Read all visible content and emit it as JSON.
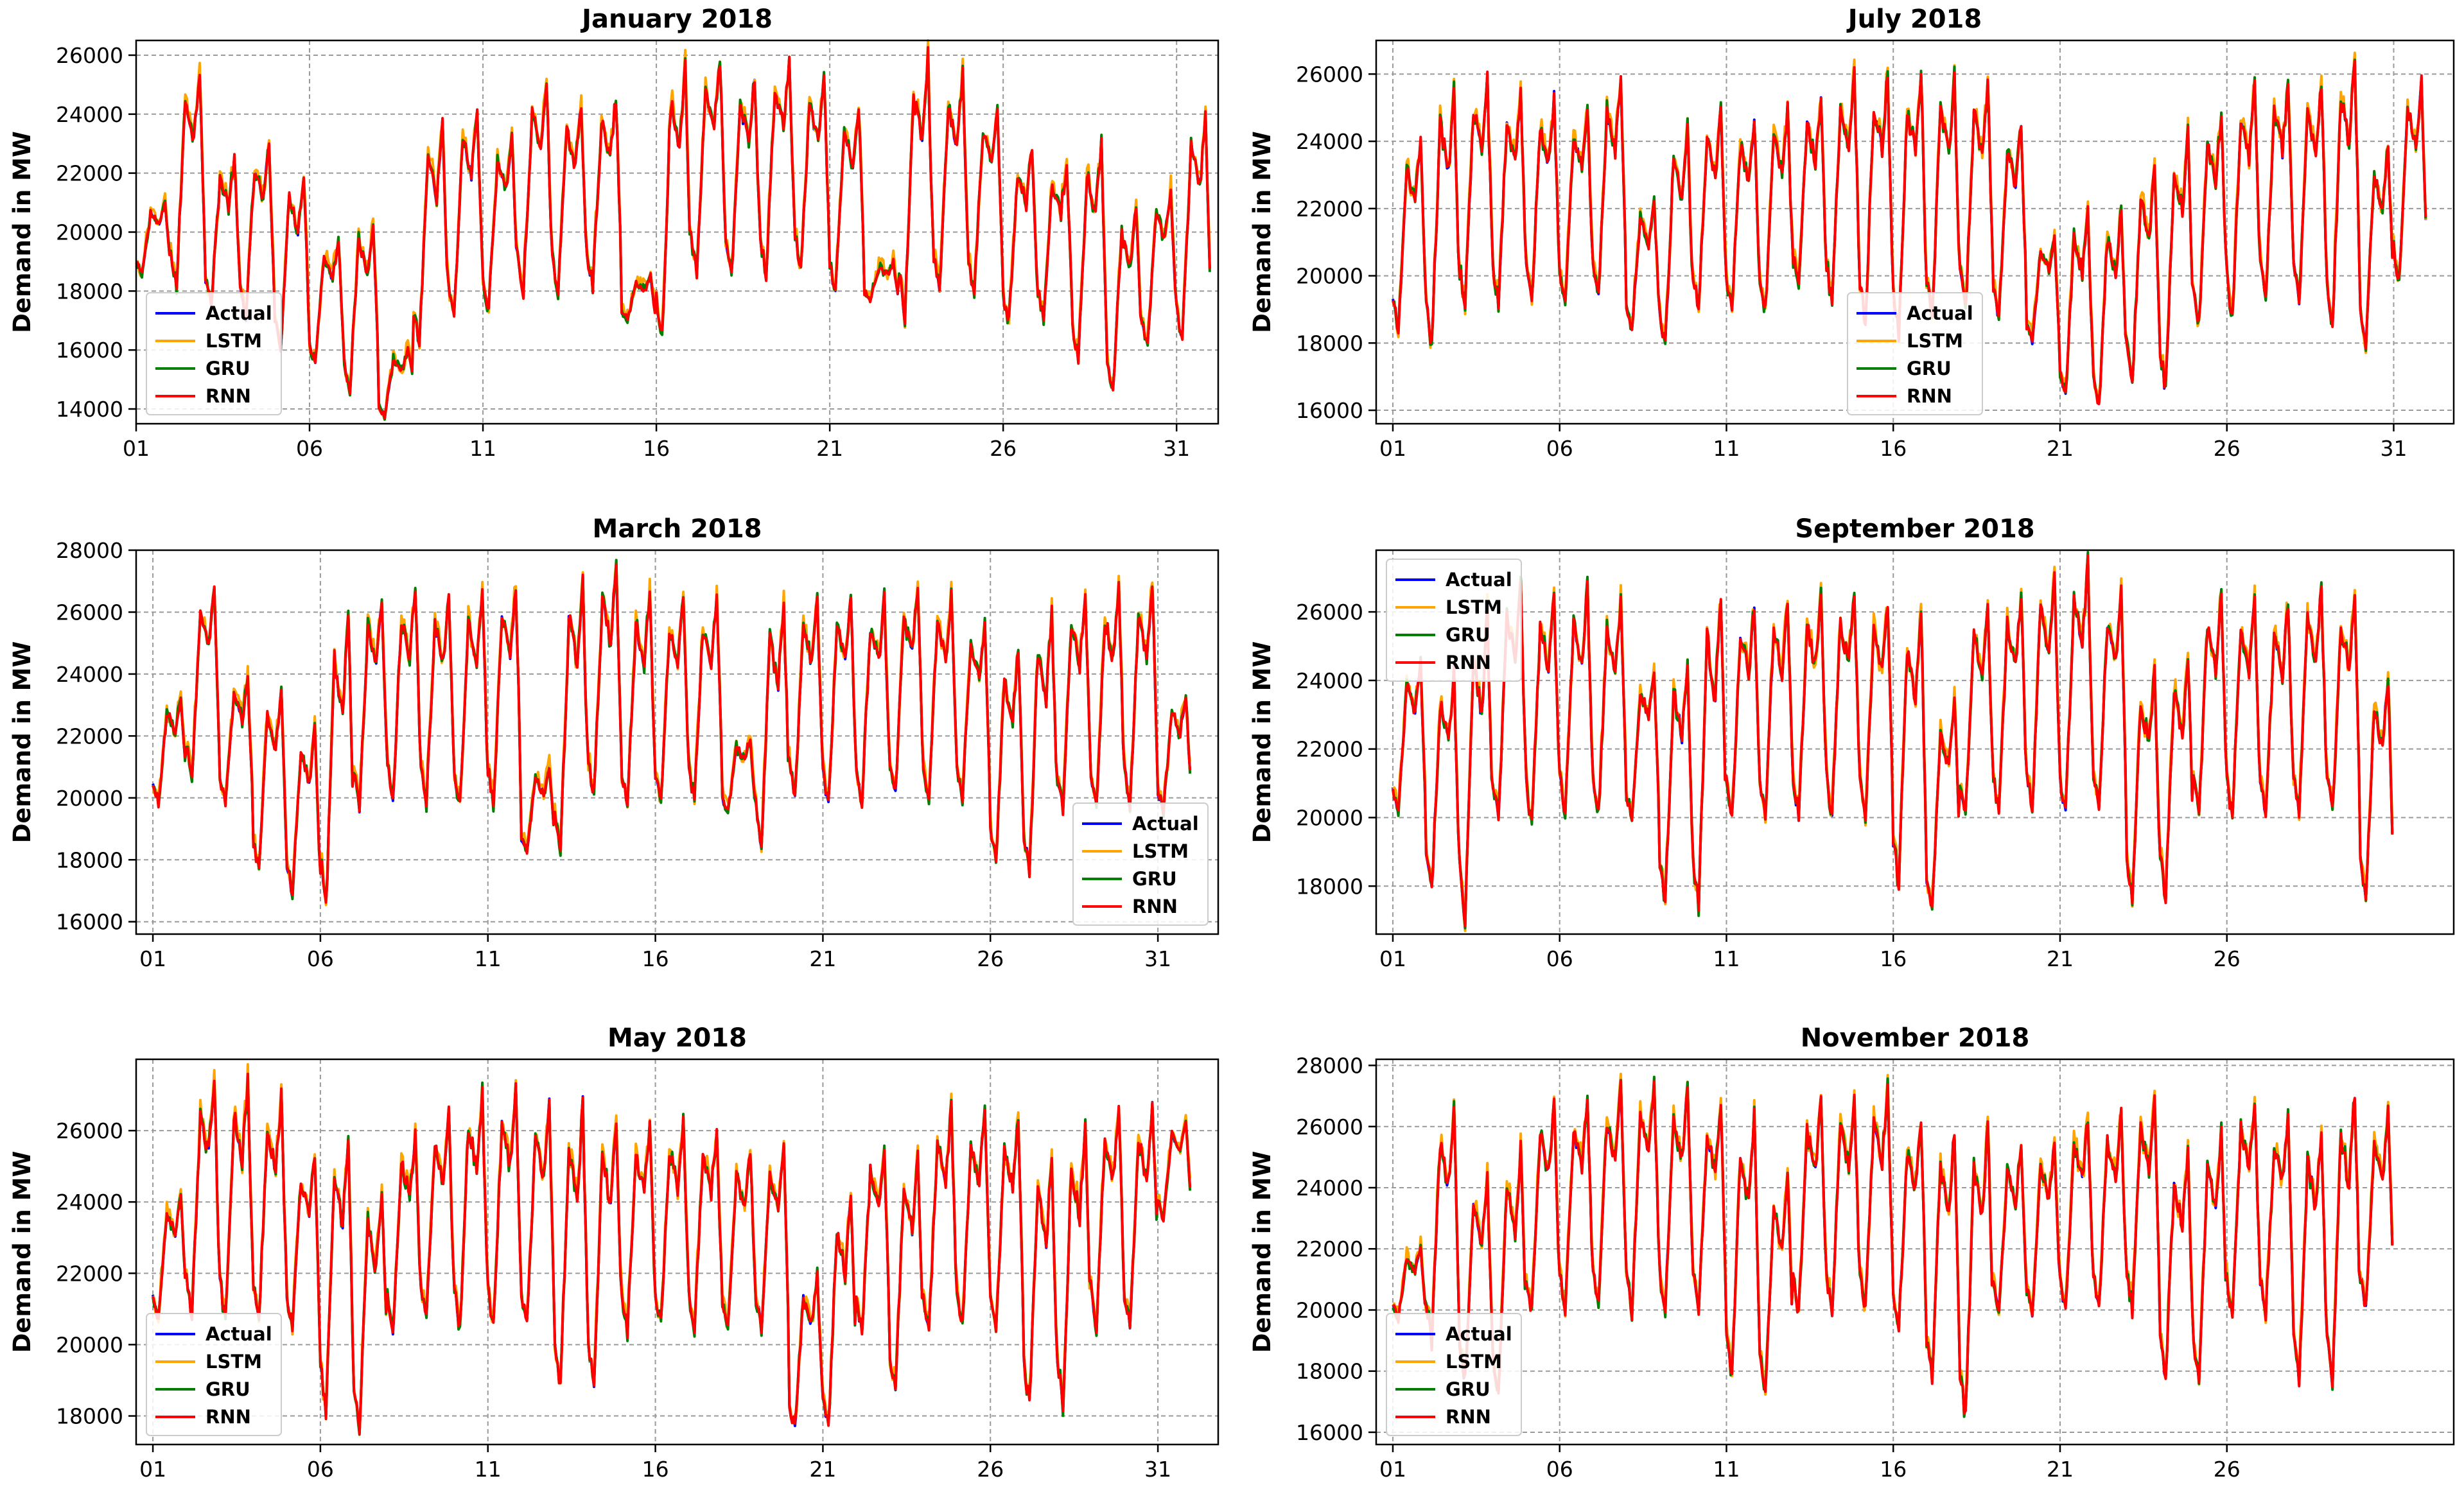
{
  "figure": {
    "rows": 3,
    "cols": 2
  },
  "legend_colors": {
    "Actual": "#0000ff",
    "LSTM": "#ffa500",
    "GRU": "#008000",
    "RNN": "#ff0000"
  },
  "chart_data": [
    {
      "type": "line",
      "title": "January 2018",
      "ylabel": "Demand in MW",
      "xlabel": "",
      "days": 31,
      "xlim": [
        1.0,
        32.2
      ],
      "ylim": [
        13500,
        26500
      ],
      "xticks": [
        1,
        6,
        11,
        16,
        21,
        26,
        31
      ],
      "xtick_labels": [
        "01",
        "06",
        "11",
        "16",
        "21",
        "26",
        "31"
      ],
      "yticks": [
        14000,
        16000,
        18000,
        20000,
        22000,
        24000,
        26000
      ],
      "legend": [
        "Actual",
        "LSTM",
        "GRU",
        "RNN"
      ],
      "legend_loc": "lower left",
      "series_names": [
        "Actual",
        "LSTM",
        "GRU",
        "RNN"
      ],
      "daily_min": [
        18500,
        18000,
        17500,
        17000,
        16000,
        15500,
        14600,
        13700,
        16000,
        16900,
        17300,
        17800,
        17900,
        18100,
        17000,
        16200,
        18500,
        18300,
        18400,
        18600,
        17800,
        17700,
        17000,
        17900,
        17800,
        16800,
        17000,
        15500,
        14500,
        16000,
        16100
      ],
      "daily_max": [
        21000,
        25600,
        22500,
        23000,
        22000,
        19800,
        20500,
        16000,
        23600,
        24200,
        23300,
        25100,
        24300,
        24600,
        18500,
        25800,
        25900,
        25300,
        25900,
        25200,
        24300,
        19000,
        25900,
        25300,
        24300,
        22900,
        22400,
        23000,
        20800,
        21500,
        24000
      ]
    },
    {
      "type": "line",
      "title": "July 2018",
      "ylabel": "Demand in MW",
      "xlabel": "",
      "days": 31,
      "xlim": [
        0.5,
        32.8
      ],
      "ylim": [
        15600,
        27000
      ],
      "xticks": [
        1,
        6,
        11,
        16,
        21,
        26,
        31
      ],
      "xtick_labels": [
        "01",
        "06",
        "11",
        "16",
        "21",
        "26",
        "31"
      ],
      "yticks": [
        16000,
        18000,
        20000,
        22000,
        24000,
        26000
      ],
      "legend": [
        "Actual",
        "LSTM",
        "GRU",
        "RNN"
      ],
      "legend_loc": "lower center",
      "series_names": [
        "Actual",
        "LSTM",
        "GRU",
        "RNN"
      ],
      "daily_min": [
        18200,
        17700,
        19000,
        19000,
        19100,
        19200,
        19200,
        18300,
        17700,
        19000,
        18900,
        18800,
        19500,
        19100,
        18400,
        18000,
        18600,
        18800,
        18600,
        18000,
        16300,
        16000,
        16700,
        16400,
        18400,
        18700,
        19300,
        19100,
        18200,
        17900,
        19700
      ],
      "daily_max": [
        24000,
        25600,
        25900,
        25500,
        25300,
        25000,
        25800,
        22200,
        24500,
        24900,
        24700,
        25000,
        25300,
        26000,
        26100,
        26200,
        25900,
        25800,
        24600,
        21200,
        21900,
        22000,
        23200,
        24300,
        24800,
        25700,
        25800,
        25800,
        26600,
        23900,
        25900
      ]
    },
    {
      "type": "line",
      "title": "March 2018",
      "ylabel": "Demand in MW",
      "xlabel": "",
      "days": 31,
      "xlim": [
        0.5,
        32.8
      ],
      "ylim": [
        15600,
        28000
      ],
      "xticks": [
        1,
        6,
        11,
        16,
        21,
        26,
        31
      ],
      "xtick_labels": [
        "01",
        "06",
        "11",
        "16",
        "21",
        "26",
        "31"
      ],
      "yticks": [
        16000,
        18000,
        20000,
        22000,
        24000,
        26000,
        28000
      ],
      "legend": [
        "Actual",
        "LSTM",
        "GRU",
        "RNN"
      ],
      "legend_loc": "lower right",
      "series_names": [
        "Actual",
        "LSTM",
        "GRU",
        "RNN"
      ],
      "daily_min": [
        19800,
        20500,
        19800,
        17600,
        16800,
        16200,
        19500,
        19800,
        19700,
        19600,
        19700,
        18200,
        18100,
        19900,
        19600,
        19600,
        19700,
        19500,
        18400,
        20000,
        19600,
        19700,
        19900,
        19700,
        19900,
        17800,
        17400,
        19500,
        19500,
        19600,
        19500
      ],
      "daily_max": [
        23200,
        26900,
        23800,
        23500,
        22200,
        25800,
        26400,
        26800,
        26600,
        26700,
        26800,
        21000,
        27100,
        27500,
        26600,
        26500,
        26500,
        22000,
        26200,
        26400,
        26600,
        26500,
        26900,
        26700,
        25700,
        24800,
        26000,
        26600,
        26800,
        26900,
        23300
      ]
    },
    {
      "type": "line",
      "title": "September 2018",
      "ylabel": "Demand in MW",
      "xlabel": "",
      "days": 30,
      "xlim": [
        0.5,
        32.8
      ],
      "ylim": [
        16600,
        27800
      ],
      "xticks": [
        1,
        6,
        11,
        16,
        21,
        26
      ],
      "xtick_labels": [
        "01",
        "06",
        "11",
        "16",
        "21",
        "26"
      ],
      "yticks": [
        18000,
        20000,
        22000,
        24000,
        26000
      ],
      "legend": [
        "Actual",
        "LSTM",
        "GRU",
        "RNN"
      ],
      "legend_loc": "upper left",
      "series_names": [
        "Actual",
        "LSTM",
        "GRU",
        "RNN"
      ],
      "daily_min": [
        20000,
        17700,
        16900,
        19800,
        19700,
        19900,
        20000,
        19900,
        17400,
        17200,
        19800,
        19900,
        19900,
        20000,
        19900,
        17800,
        17100,
        19900,
        20000,
        20000,
        19900,
        20000,
        17500,
        17600,
        19900,
        19900,
        19900,
        20000,
        20000,
        17500
      ],
      "daily_max": [
        24500,
        24300,
        26000,
        26800,
        26500,
        26700,
        26300,
        24300,
        24700,
        26500,
        26300,
        26300,
        26500,
        26600,
        26300,
        26200,
        23500,
        26200,
        26500,
        27200,
        27400,
        26700,
        24300,
        24700,
        26500,
        26300,
        26300,
        26700,
        26500,
        24100
      ]
    },
    {
      "type": "line",
      "title": "May 2018",
      "ylabel": "Demand in MW",
      "xlabel": "",
      "days": 31,
      "xlim": [
        0.5,
        32.8
      ],
      "ylim": [
        17200,
        28000
      ],
      "xticks": [
        1,
        6,
        11,
        16,
        21,
        26,
        31
      ],
      "xtick_labels": [
        "01",
        "06",
        "11",
        "16",
        "21",
        "26",
        "31"
      ],
      "yticks": [
        18000,
        20000,
        22000,
        24000,
        26000
      ],
      "legend": [
        "Actual",
        "LSTM",
        "GRU",
        "RNN"
      ],
      "legend_loc": "lower left",
      "series_names": [
        "Actual",
        "LSTM",
        "GRU",
        "RNN"
      ],
      "daily_min": [
        20700,
        20600,
        20500,
        20500,
        20400,
        17900,
        17500,
        20300,
        20500,
        20300,
        20400,
        20400,
        18500,
        18500,
        20300,
        20400,
        20400,
        20300,
        20400,
        17500,
        17500,
        20300,
        18500,
        20200,
        20400,
        20300,
        18200,
        18100,
        20400,
        20300,
        23500
      ],
      "daily_max": [
        24200,
        27500,
        27400,
        27000,
        25300,
        25900,
        24300,
        25900,
        26500,
        27100,
        27100,
        26700,
        26800,
        26400,
        26200,
        26300,
        26100,
        25500,
        25400,
        22000,
        24100,
        25600,
        25500,
        26600,
        26500,
        26300,
        25200,
        26100,
        26700,
        26600,
        26300
      ]
    },
    {
      "type": "line",
      "title": "November 2018",
      "ylabel": "Demand in MW",
      "xlabel": "",
      "days": 30,
      "xlim": [
        0.5,
        32.8
      ],
      "ylim": [
        15600,
        28200
      ],
      "xticks": [
        1,
        6,
        11,
        16,
        21,
        26
      ],
      "xtick_labels": [
        "01",
        "06",
        "11",
        "16",
        "21",
        "26"
      ],
      "yticks": [
        16000,
        18000,
        20000,
        22000,
        24000,
        26000,
        28000
      ],
      "legend": [
        "Actual",
        "LSTM",
        "GRU",
        "RNN"
      ],
      "legend_loc": "lower left",
      "series_names": [
        "Actual",
        "LSTM",
        "GRU",
        "RNN"
      ],
      "daily_min": [
        19700,
        18800,
        17600,
        17000,
        19800,
        19900,
        19900,
        19800,
        19900,
        19900,
        17700,
        17100,
        19800,
        19800,
        19900,
        19200,
        17600,
        16200,
        19800,
        19800,
        19800,
        19900,
        19900,
        17700,
        17500,
        19700,
        19800,
        17600,
        17500,
        19900
      ],
      "daily_max": [
        22000,
        26500,
        24300,
        25200,
        26700,
        26900,
        27300,
        27500,
        27300,
        26700,
        26300,
        24300,
        26800,
        26900,
        27200,
        26200,
        25900,
        26100,
        25300,
        25500,
        26300,
        26400,
        26800,
        25200,
        25800,
        27000,
        26300,
        26000,
        27200,
        26500
      ]
    }
  ]
}
